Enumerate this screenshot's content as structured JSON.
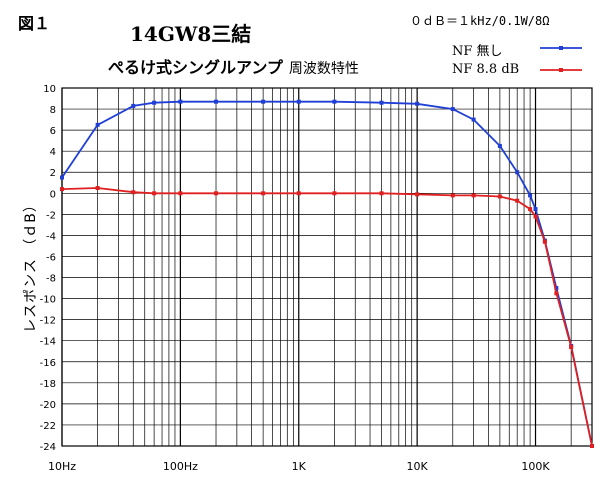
{
  "figure_label": "図１",
  "title": "14GW8三結",
  "subtitle": "ぺるけ式シングルアンプ",
  "subtitle2": "周波数特性",
  "reference": "０ｄＢ＝１kHz/0.1W/8Ω",
  "ylabel": "レスポンス （ｄB）",
  "colors": {
    "nf_none": "#1f3fd6",
    "nf_8_8": "#e02020",
    "grid": "#000000"
  },
  "chart_data": {
    "type": "line",
    "title": "14GW8三結",
    "xlabel": "",
    "ylabel": "レスポンス （ｄB）",
    "x_scale": "log",
    "xlim": [
      10,
      300000
    ],
    "ylim": [
      -24,
      10
    ],
    "grid": true,
    "legend_position": "top-right",
    "x_tick_labels": [
      {
        "x": 10,
        "label": "10Hz"
      },
      {
        "x": 100,
        "label": "100Hz"
      },
      {
        "x": 1000,
        "label": "1K"
      },
      {
        "x": 10000,
        "label": "10K"
      },
      {
        "x": 100000,
        "label": "100K"
      }
    ],
    "y_ticks": [
      10,
      8,
      6,
      4,
      2,
      0,
      -2,
      -4,
      -6,
      -8,
      -10,
      -12,
      -14,
      -16,
      -18,
      -20,
      -22,
      -24
    ],
    "series": [
      {
        "name": "NF 無し",
        "color": "#1f3fd6",
        "x": [
          10,
          20,
          40,
          60,
          100,
          200,
          500,
          1000,
          2000,
          5000,
          10000,
          20000,
          30000,
          50000,
          70000,
          90000,
          100000,
          120000,
          150000,
          200000,
          300000
        ],
        "y": [
          1.5,
          6.5,
          8.3,
          8.6,
          8.7,
          8.7,
          8.7,
          8.7,
          8.7,
          8.6,
          8.5,
          8.0,
          7.0,
          4.5,
          2.0,
          -0.2,
          -1.5,
          -4.5,
          -9.0,
          -14.5,
          -24
        ]
      },
      {
        "name": "NF 8.8 dB",
        "color": "#e02020",
        "x": [
          10,
          20,
          40,
          60,
          100,
          200,
          500,
          1000,
          2000,
          5000,
          10000,
          20000,
          30000,
          50000,
          70000,
          90000,
          100000,
          120000,
          150000,
          200000,
          300000
        ],
        "y": [
          0.4,
          0.5,
          0.1,
          0.0,
          0.0,
          0.0,
          0.0,
          0.0,
          0.0,
          0.0,
          -0.1,
          -0.2,
          -0.2,
          -0.3,
          -0.7,
          -1.5,
          -2.2,
          -4.6,
          -9.5,
          -14.6,
          -24
        ]
      }
    ]
  }
}
